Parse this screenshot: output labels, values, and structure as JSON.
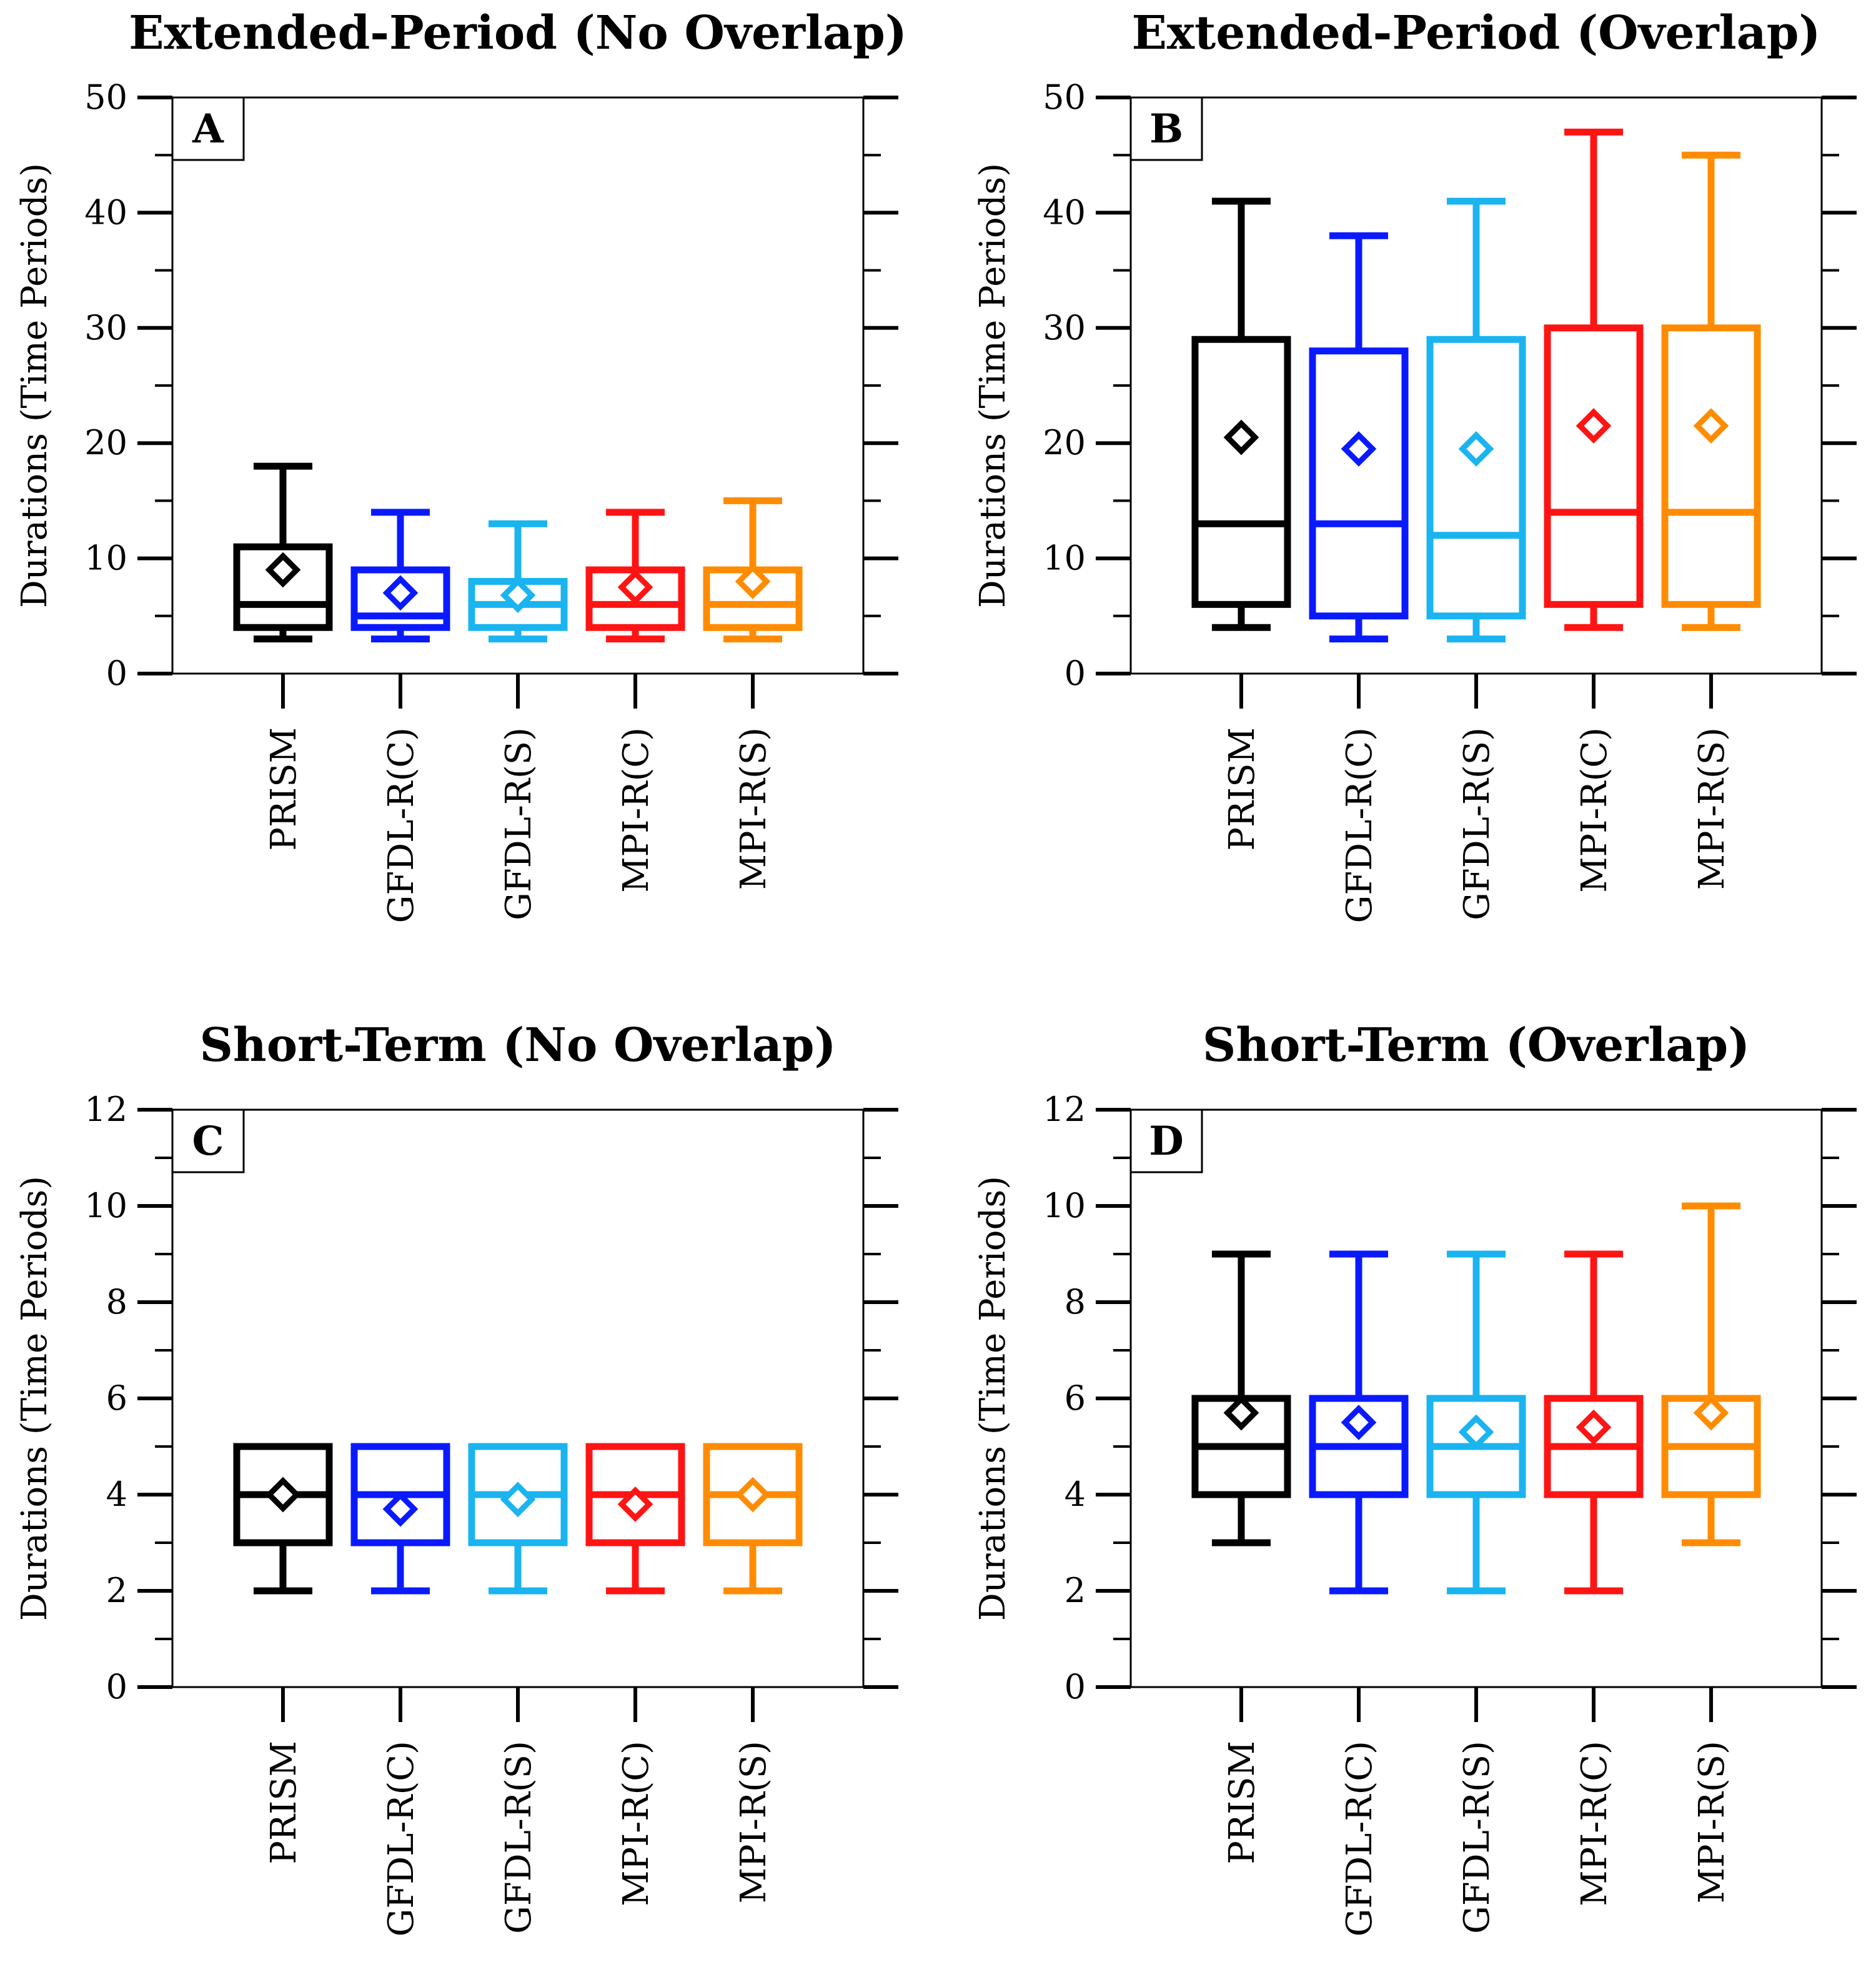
{
  "chart_data": [
    {
      "panel": "A",
      "type": "box",
      "title": "Extended-Period (No Overlap)",
      "ylabel": "Durations (Time Periods)",
      "ylim": [
        0,
        50
      ],
      "yticks": [
        0,
        10,
        20,
        30,
        40,
        50
      ],
      "yminor_step": 5,
      "categories": [
        "PRISM",
        "GFDL-R(C)",
        "GFDL-R(S)",
        "MPI-R(C)",
        "MPI-R(S)"
      ],
      "colors": [
        "#000000",
        "#0a1aff",
        "#1ab4f0",
        "#ff1414",
        "#ff8c00"
      ],
      "boxes": [
        {
          "min": 3,
          "q1": 4,
          "median": 6,
          "q3": 11,
          "max": 18,
          "mean": 9
        },
        {
          "min": 3,
          "q1": 4,
          "median": 5,
          "q3": 9,
          "max": 14,
          "mean": 7
        },
        {
          "min": 3,
          "q1": 4,
          "median": 6,
          "q3": 8,
          "max": 13,
          "mean": 6.8
        },
        {
          "min": 3,
          "q1": 4,
          "median": 6,
          "q3": 9,
          "max": 14,
          "mean": 7.5
        },
        {
          "min": 3,
          "q1": 4,
          "median": 6,
          "q3": 9,
          "max": 15,
          "mean": 8
        }
      ]
    },
    {
      "panel": "B",
      "type": "box",
      "title": "Extended-Period (Overlap)",
      "ylabel": "Durations (Time Periods)",
      "ylim": [
        0,
        50
      ],
      "yticks": [
        0,
        10,
        20,
        30,
        40,
        50
      ],
      "yminor_step": 5,
      "categories": [
        "PRISM",
        "GFDL-R(C)",
        "GFDL-R(S)",
        "MPI-R(C)",
        "MPI-R(S)"
      ],
      "colors": [
        "#000000",
        "#0a1aff",
        "#1ab4f0",
        "#ff1414",
        "#ff8c00"
      ],
      "boxes": [
        {
          "min": 4,
          "q1": 6,
          "median": 13,
          "q3": 29,
          "max": 41,
          "mean": 20.5
        },
        {
          "min": 3,
          "q1": 5,
          "median": 13,
          "q3": 28,
          "max": 38,
          "mean": 19.5
        },
        {
          "min": 3,
          "q1": 5,
          "median": 12,
          "q3": 29,
          "max": 41,
          "mean": 19.5
        },
        {
          "min": 4,
          "q1": 6,
          "median": 14,
          "q3": 30,
          "max": 47,
          "mean": 21.5
        },
        {
          "min": 4,
          "q1": 6,
          "median": 14,
          "q3": 30,
          "max": 45,
          "mean": 21.5
        }
      ]
    },
    {
      "panel": "C",
      "type": "box",
      "title": "Short-Term (No Overlap)",
      "ylabel": "Durations (Time Periods)",
      "ylim": [
        0,
        12
      ],
      "yticks": [
        0,
        2,
        4,
        6,
        8,
        10,
        12
      ],
      "yminor_step": 1,
      "categories": [
        "PRISM",
        "GFDL-R(C)",
        "GFDL-R(S)",
        "MPI-R(C)",
        "MPI-R(S)"
      ],
      "colors": [
        "#000000",
        "#0a1aff",
        "#1ab4f0",
        "#ff1414",
        "#ff8c00"
      ],
      "boxes": [
        {
          "min": 2,
          "q1": 3,
          "median": 4,
          "q3": 5,
          "max": 5,
          "mean": 4
        },
        {
          "min": 2,
          "q1": 3,
          "median": 4,
          "q3": 5,
          "max": 5,
          "mean": 3.7
        },
        {
          "min": 2,
          "q1": 3,
          "median": 4,
          "q3": 5,
          "max": 5,
          "mean": 3.9
        },
        {
          "min": 2,
          "q1": 3,
          "median": 4,
          "q3": 5,
          "max": 5,
          "mean": 3.8
        },
        {
          "min": 2,
          "q1": 3,
          "median": 4,
          "q3": 5,
          "max": 5,
          "mean": 4
        }
      ]
    },
    {
      "panel": "D",
      "type": "box",
      "title": "Short-Term (Overlap)",
      "ylabel": "Durations (Time Periods)",
      "ylim": [
        0,
        12
      ],
      "yticks": [
        0,
        2,
        4,
        6,
        8,
        10,
        12
      ],
      "yminor_step": 1,
      "categories": [
        "PRISM",
        "GFDL-R(C)",
        "GFDL-R(S)",
        "MPI-R(C)",
        "MPI-R(S)"
      ],
      "colors": [
        "#000000",
        "#0a1aff",
        "#1ab4f0",
        "#ff1414",
        "#ff8c00"
      ],
      "boxes": [
        {
          "min": 3,
          "q1": 4,
          "median": 5,
          "q3": 6,
          "max": 9,
          "mean": 5.7
        },
        {
          "min": 2,
          "q1": 4,
          "median": 5,
          "q3": 6,
          "max": 9,
          "mean": 5.5
        },
        {
          "min": 2,
          "q1": 4,
          "median": 5,
          "q3": 6,
          "max": 9,
          "mean": 5.3
        },
        {
          "min": 2,
          "q1": 4,
          "median": 5,
          "q3": 6,
          "max": 9,
          "mean": 5.4
        },
        {
          "min": 3,
          "q1": 4,
          "median": 5,
          "q3": 6,
          "max": 10,
          "mean": 5.7
        }
      ]
    }
  ]
}
